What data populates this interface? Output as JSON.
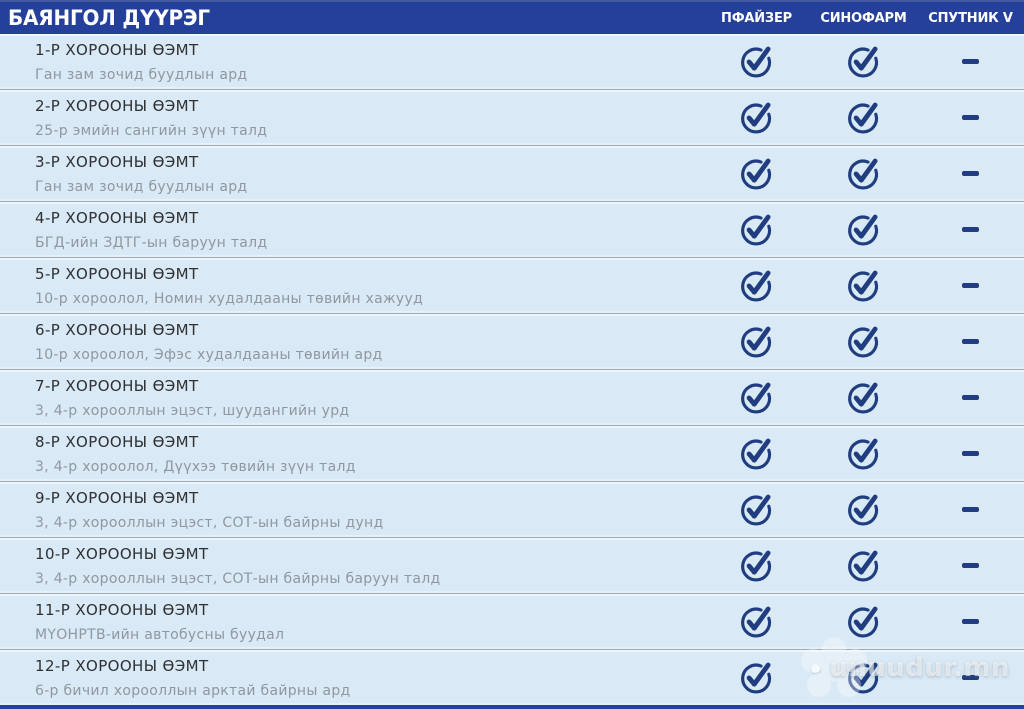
{
  "chart_data": {
    "type": "table",
    "title": "БАЯНГОЛ ДҮҮРЭГ",
    "columns": [
      "ПФАЙЗЕР",
      "СИНОФАРМ",
      "СПУТНИК V"
    ],
    "rows": [
      {
        "name": "1-Р ХОРООНЫ ӨЭМТ",
        "location": "Ган зам зочид буудлын ард",
        "values": [
          true,
          true,
          false
        ]
      },
      {
        "name": "2-Р ХОРООНЫ ӨЭМТ",
        "location": "25-р эмийн сангийн зүүн талд",
        "values": [
          true,
          true,
          false
        ]
      },
      {
        "name": "3-Р ХОРООНЫ ӨЭМТ",
        "location": "Ган зам зочид буудлын ард",
        "values": [
          true,
          true,
          false
        ]
      },
      {
        "name": "4-Р ХОРООНЫ ӨЭМТ",
        "location": "БГД-ийн ЗДТГ-ын баруун талд",
        "values": [
          true,
          true,
          false
        ]
      },
      {
        "name": "5-Р ХОРООНЫ ӨЭМТ",
        "location": "10-р хороолол, Номин худалдааны төвийн хажууд",
        "values": [
          true,
          true,
          false
        ]
      },
      {
        "name": "6-Р ХОРООНЫ ӨЭМТ",
        "location": "10-р хороолол, Эфэс худалдааны төвийн ард",
        "values": [
          true,
          true,
          false
        ]
      },
      {
        "name": "7-Р ХОРООНЫ ӨЭМТ",
        "location": "3, 4-р хорооллын эцэст, шуудангийн урд",
        "values": [
          true,
          true,
          false
        ]
      },
      {
        "name": "8-Р ХОРООНЫ ӨЭМТ",
        "location": "3, 4-р хороолол, Дүүхээ төвийн зүүн талд",
        "values": [
          true,
          true,
          false
        ]
      },
      {
        "name": "9-Р ХОРООНЫ ӨЭМТ",
        "location": "3, 4-р хорооллын эцэст,  СОТ-ын байрны дунд",
        "values": [
          true,
          true,
          false
        ]
      },
      {
        "name": "10-Р ХОРООНЫ ӨЭМТ",
        "location": "3, 4-р хорооллын эцэст,  СОТ-ын байрны баруун талд",
        "values": [
          true,
          true,
          false
        ]
      },
      {
        "name": "11-Р ХОРООНЫ ӨЭМТ",
        "location": "МҮОНРТВ-ийн автобусны буудал",
        "values": [
          true,
          true,
          false
        ]
      },
      {
        "name": "12-Р ХОРООНЫ ӨЭМТ",
        "location": "6-р бичил хорооллын арктай байрны ард",
        "values": [
          true,
          true,
          false
        ]
      }
    ],
    "cell_symbols": {
      "true": "check-circle",
      "false": "dash"
    }
  },
  "watermark": {
    "text": "unuudur.mn"
  },
  "colors": {
    "header": "#24409a",
    "headerTop": "#44599f",
    "check": "#1f3d7f",
    "rowBg": "#d9e9f5",
    "gapBg": "#ecf4fa",
    "line": "#9dabb9",
    "title": "#2e3033",
    "subtitle": "#8f989e"
  }
}
